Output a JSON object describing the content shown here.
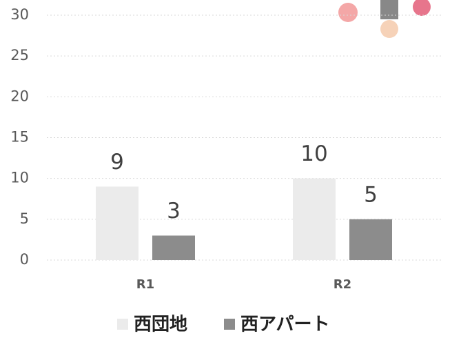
{
  "chart_data": {
    "type": "bar",
    "categories": [
      "R1",
      "R2"
    ],
    "series": [
      {
        "name": "西団地",
        "color": "#ebebeb",
        "values": [
          9,
          10
        ]
      },
      {
        "name": "西アパート",
        "color": "#8c8c8c",
        "values": [
          3,
          5
        ]
      }
    ],
    "ylim": [
      0,
      30
    ],
    "yticks": [
      0,
      5,
      10,
      15,
      20,
      25,
      30
    ],
    "grid": true
  }
}
